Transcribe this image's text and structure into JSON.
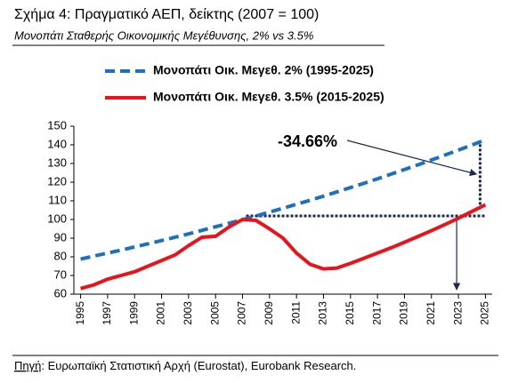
{
  "chart_data": {
    "type": "line",
    "title": "Σχήμα 4: Πραγματικό ΑΕΠ, δείκτης (2007 = 100)",
    "subtitle": "Μονοπάτι Σταθερής Οικονομικής Μεγέθυνσης, 2% vs 3.5%",
    "source_label": "Πηγή",
    "source_text": ": Ευρωπαϊκή Στατιστική Αρχή (Eurostat), Eurobank Research.",
    "annotation": "-34.66%",
    "x": [
      1995,
      1996,
      1997,
      1998,
      1999,
      2000,
      2001,
      2002,
      2003,
      2004,
      2005,
      2006,
      2007,
      2008,
      2009,
      2010,
      2011,
      2012,
      2013,
      2014,
      2015,
      2016,
      2017,
      2018,
      2019,
      2020,
      2021,
      2022,
      2023,
      2024,
      2025
    ],
    "xticks": [
      1995,
      1997,
      1999,
      2001,
      2003,
      2005,
      2007,
      2009,
      2011,
      2013,
      2015,
      2017,
      2019,
      2021,
      2023,
      2025
    ],
    "series": [
      {
        "name": "Μονοπάτι Οικ. Μεγεθ. 2% (1995-2025)",
        "color": "#1f6fc0",
        "dashed": true,
        "values": [
          78.8,
          80.4,
          82.0,
          83.6,
          85.3,
          87.0,
          88.7,
          90.5,
          92.3,
          94.2,
          96.1,
          98.0,
          99.9,
          101.9,
          104.0,
          106.0,
          108.2,
          110.3,
          112.5,
          114.8,
          117.1,
          119.4,
          121.8,
          124.3,
          126.8,
          129.3,
          131.9,
          134.5,
          137.2,
          139.9,
          142.7
        ]
      },
      {
        "name": "Μονοπάτι Οικ. Μεγεθ. 3.5% (2015-2025)",
        "color": "#e8141b",
        "dashed": false,
        "values": [
          63,
          65,
          68,
          70,
          72,
          75,
          78,
          81,
          86,
          90.5,
          91,
          96,
          100,
          99.5,
          95,
          90,
          82,
          76,
          73.5,
          74,
          76.5,
          79.2,
          82,
          84.8,
          87.8,
          90.9,
          94.0,
          97.3,
          100.7,
          104.3,
          107.9
        ]
      }
    ],
    "ylim": [
      60,
      150
    ],
    "yticks": [
      60,
      70,
      80,
      90,
      100,
      110,
      120,
      130,
      140,
      150
    ],
    "grid": false
  }
}
